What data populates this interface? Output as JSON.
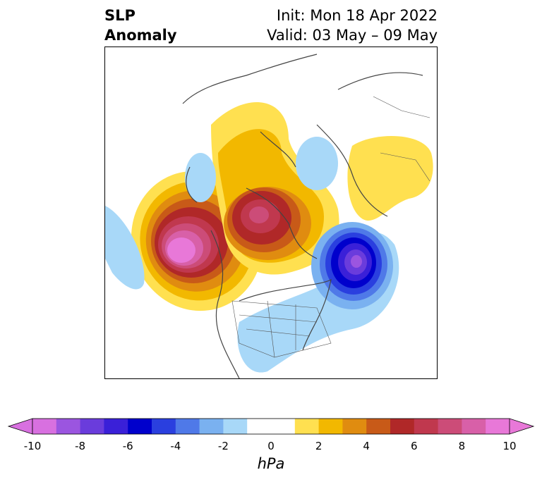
{
  "header": {
    "variable": "SLP",
    "kind": "Anomaly",
    "init": "Init: Mon 18 Apr 2022",
    "valid": "Valid: 03 May – 09 May"
  },
  "colorbar": {
    "units": "hPa",
    "range": [
      -10,
      10
    ],
    "step": 1,
    "ticks": [
      "-10",
      "-8",
      "-6",
      "-4",
      "-2",
      "0",
      "2",
      "4",
      "6",
      "8",
      "10"
    ],
    "colors": [
      "#d870e0",
      "#9b55e0",
      "#6a3cdc",
      "#3a20d8",
      "#0000cc",
      "#2a3fdf",
      "#4f79e8",
      "#7ab1f0",
      "#a8d8f8",
      "#ffffff",
      "#ffffff",
      "#ffe050",
      "#f2b800",
      "#e08c10",
      "#c85a18",
      "#b02828",
      "#c0384e",
      "#cc4c78",
      "#d860a8",
      "#e878d8"
    ],
    "extend": "both"
  },
  "map": {
    "projection": "north-polar-stereographic",
    "anomalies": [
      {
        "name": "positive-anomaly-northeast-pacific",
        "peak_hpa": 10
      },
      {
        "name": "positive-anomaly-arctic-siberia",
        "peak_hpa": 9
      },
      {
        "name": "negative-anomaly-north-atlantic",
        "peak_hpa": -8
      },
      {
        "name": "negative-anomaly-scandinavia",
        "peak_hpa": -2
      },
      {
        "name": "positive-anomaly-north-africa-europe",
        "peak_hpa": 2
      }
    ]
  }
}
